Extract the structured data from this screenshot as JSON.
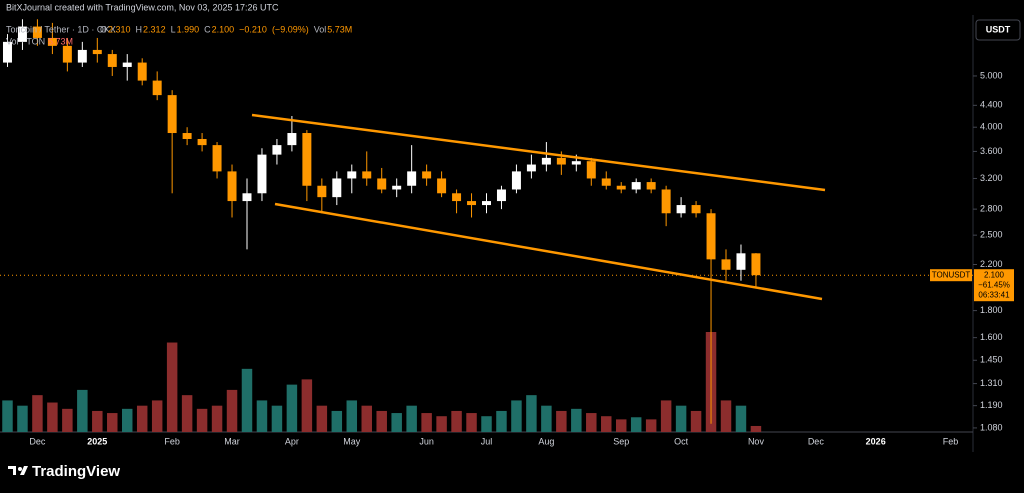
{
  "watermark": "BitXJournal created with TradingView.com, Nov 03, 2025 17:26 UTC",
  "brand": "TradingView",
  "chart_data": {
    "type": "candlestick",
    "symbol": "Toncoin / Tether · 1D · OKX",
    "ohlc_legend": [
      {
        "prefix": "O",
        "value": 2.31,
        "label": "2.310"
      },
      {
        "prefix": "H",
        "value": 2.312,
        "label": "2.312"
      },
      {
        "prefix": "L",
        "value": 1.99,
        "label": "1.990"
      },
      {
        "prefix": "C",
        "value": 2.1,
        "label": "2.100"
      },
      {
        "prefix": "",
        "value": -0.21,
        "label": "−0.210"
      },
      {
        "prefix": "",
        "value": -9.09,
        "label": "(−9.09%)"
      },
      {
        "prefix": "Vol",
        "value": 5.73,
        "label": "5.73M"
      }
    ],
    "volume_legend": {
      "name": "Vol · TON",
      "value": 5.73,
      "label": "5.73M"
    },
    "currency": "USDT",
    "price_tag": {
      "symbol": "TONUSDT",
      "value": 2.1,
      "label": "2.100",
      "change": {
        "value": -61.45,
        "label": "−61.45%"
      },
      "countdown": "06:33:41"
    },
    "log_scale": true,
    "up_color": "#ffffff",
    "down_color": "#ff9800",
    "volume_up_color": "#1f6f68",
    "volume_down_color": "#8c2d2d",
    "channel_color": "#ff9800",
    "ylim": [
      1.061,
      6.52
    ],
    "yticks": [
      {
        "value": 5,
        "label": "5.000"
      },
      {
        "value": 4.4,
        "label": "4.400"
      },
      {
        "value": 4,
        "label": "4.000"
      },
      {
        "value": 3.6,
        "label": "3.600"
      },
      {
        "value": 3.2,
        "label": "3.200"
      },
      {
        "value": 2.8,
        "label": "2.800"
      },
      {
        "value": 2.5,
        "label": "2.500"
      },
      {
        "value": 2.2,
        "label": "2.200"
      },
      {
        "value": 1.8,
        "label": "1.800"
      },
      {
        "value": 1.6,
        "label": "1.600"
      },
      {
        "value": 1.45,
        "label": "1.450"
      },
      {
        "value": 1.31,
        "label": "1.310"
      },
      {
        "value": 1.19,
        "label": "1.190"
      },
      {
        "value": 1.08,
        "label": "1.080"
      }
    ],
    "categories": [
      null,
      null,
      "Dec",
      null,
      null,
      null,
      "2025",
      null,
      null,
      null,
      null,
      "Feb",
      null,
      null,
      null,
      "Mar",
      null,
      null,
      null,
      "Apr",
      null,
      null,
      null,
      "May",
      null,
      null,
      null,
      null,
      "Jun",
      null,
      null,
      null,
      "Jul",
      null,
      null,
      null,
      "Aug",
      null,
      null,
      null,
      null,
      "Sep",
      null,
      null,
      null,
      "Oct",
      null,
      null,
      null,
      null,
      "Nov",
      null,
      null,
      null,
      "Dec",
      null,
      null,
      null,
      "2026",
      null,
      null,
      null,
      null,
      "Feb",
      null
    ],
    "open": [
      5.3,
      5.8,
      6.2,
      5.9,
      5.7,
      5.3,
      5.6,
      5.5,
      5.2,
      5.3,
      4.9,
      4.6,
      3.9,
      3.8,
      3.7,
      3.3,
      2.9,
      3.0,
      3.55,
      3.7,
      3.9,
      3.1,
      2.95,
      3.2,
      3.3,
      3.2,
      3.05,
      3.1,
      3.3,
      3.2,
      3.0,
      2.9,
      2.85,
      2.9,
      3.05,
      3.3,
      3.4,
      3.5,
      3.4,
      3.45,
      3.2,
      3.1,
      3.05,
      3.15,
      3.05,
      2.75,
      2.85,
      2.75,
      2.25,
      2.15,
      2.31,
      null,
      null,
      null,
      null,
      null,
      null,
      null,
      null,
      null,
      null,
      null,
      null,
      null,
      null
    ],
    "high": [
      6.0,
      6.4,
      6.4,
      6.3,
      5.9,
      5.8,
      5.9,
      5.6,
      5.5,
      5.4,
      5.1,
      4.7,
      4.0,
      3.9,
      3.75,
      3.4,
      3.2,
      3.65,
      3.8,
      4.2,
      3.95,
      3.2,
      3.3,
      3.4,
      3.6,
      3.35,
      3.2,
      3.7,
      3.4,
      3.3,
      3.05,
      3.0,
      3.0,
      3.1,
      3.4,
      3.55,
      3.75,
      3.6,
      3.55,
      3.5,
      3.3,
      3.15,
      3.2,
      3.2,
      3.1,
      2.95,
      2.9,
      2.8,
      2.35,
      2.4,
      2.312,
      null,
      null,
      null,
      null,
      null,
      null,
      null,
      null,
      null,
      null,
      null,
      null,
      null,
      null
    ],
    "low": [
      5.2,
      5.6,
      5.7,
      5.5,
      5.1,
      5.2,
      5.3,
      5.0,
      4.9,
      4.8,
      4.5,
      3.0,
      3.7,
      3.6,
      3.2,
      2.7,
      2.35,
      2.9,
      3.4,
      3.6,
      2.9,
      2.75,
      2.85,
      3.0,
      3.1,
      3.0,
      2.95,
      3.0,
      3.1,
      2.95,
      2.75,
      2.7,
      2.75,
      2.8,
      3.0,
      3.2,
      3.3,
      3.25,
      3.3,
      3.1,
      3.05,
      3.0,
      3.0,
      3.0,
      2.6,
      2.7,
      2.7,
      1.1,
      2.05,
      2.05,
      1.99,
      null,
      null,
      null,
      null,
      null,
      null,
      null,
      null,
      null,
      null,
      null,
      null,
      null,
      null
    ],
    "close": [
      5.8,
      6.2,
      5.9,
      5.7,
      5.3,
      5.6,
      5.5,
      5.2,
      5.3,
      4.9,
      4.6,
      3.9,
      3.8,
      3.7,
      3.3,
      2.9,
      3.0,
      3.55,
      3.7,
      3.9,
      3.1,
      2.95,
      3.2,
      3.3,
      3.2,
      3.05,
      3.1,
      3.3,
      3.2,
      3.0,
      2.9,
      2.85,
      2.9,
      3.05,
      3.3,
      3.4,
      3.5,
      3.4,
      3.45,
      3.2,
      3.1,
      3.05,
      3.15,
      3.05,
      2.75,
      2.85,
      2.75,
      2.25,
      2.15,
      2.31,
      2.1,
      null,
      null,
      null,
      null,
      null,
      null,
      null,
      null,
      null,
      null,
      null,
      null,
      null,
      null
    ],
    "volume": [
      30,
      25,
      35,
      28,
      22,
      40,
      20,
      18,
      22,
      25,
      30,
      85,
      35,
      22,
      25,
      40,
      60,
      30,
      25,
      45,
      50,
      25,
      20,
      30,
      25,
      20,
      18,
      25,
      18,
      15,
      20,
      18,
      15,
      20,
      30,
      35,
      25,
      20,
      22,
      18,
      15,
      12,
      14,
      12,
      30,
      25,
      20,
      95,
      30,
      25,
      5.73,
      null,
      null,
      null,
      null,
      null,
      null,
      null,
      null,
      null,
      null,
      null,
      null,
      null,
      null
    ]
  }
}
